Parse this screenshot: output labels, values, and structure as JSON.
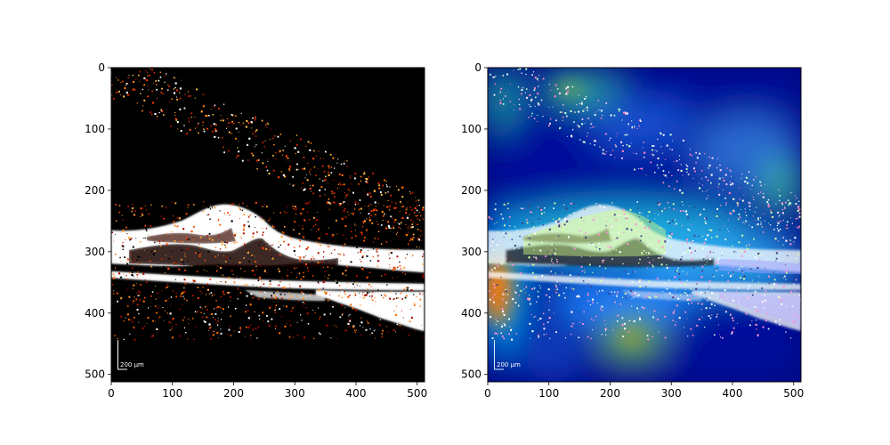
{
  "panels": [
    {
      "id": "oct",
      "colormap": "hot",
      "scale_bar_label": "200 µm",
      "x_ticks": [
        "0",
        "100",
        "200",
        "300",
        "400",
        "500"
      ],
      "y_ticks": [
        "0",
        "100",
        "200",
        "300",
        "400",
        "500"
      ]
    },
    {
      "id": "heatmap-overlay",
      "colormap": "jet",
      "scale_bar_label": "200 µm",
      "x_ticks": [
        "0",
        "100",
        "200",
        "300",
        "400",
        "500"
      ],
      "y_ticks": [
        "0",
        "100",
        "200",
        "300",
        "400",
        "500"
      ]
    }
  ],
  "axis_range": [
    0,
    512
  ],
  "colors": {
    "background": "#000000",
    "tissue": "#ffffff",
    "speckle": "#ff6a00",
    "heat_low": "#00007f",
    "heat_mid": "#00c0c0",
    "heat_hot": "#ff2000"
  }
}
